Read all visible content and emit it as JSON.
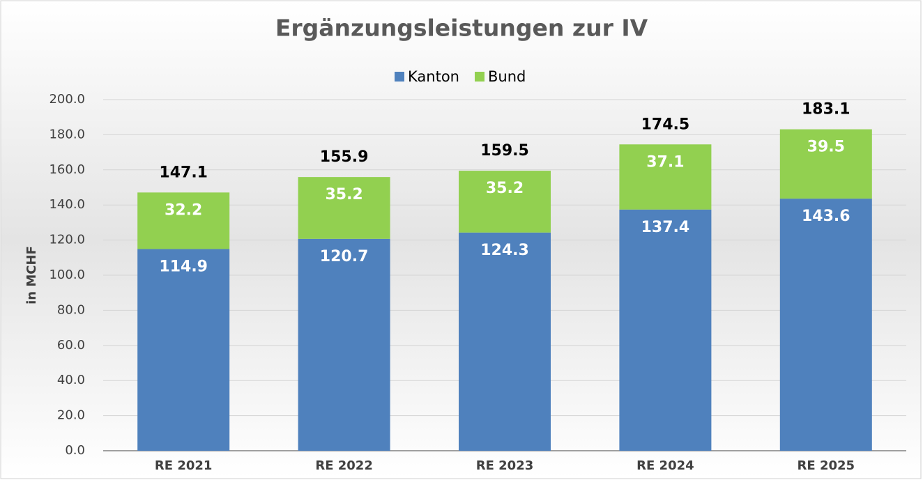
{
  "chart_data": {
    "type": "stacked_bar",
    "title": "Ergänzungsleistungen zur IV",
    "y_axis_label": "in MCHF",
    "categories": [
      "RE 2021",
      "RE 2022",
      "RE 2023",
      "RE 2024",
      "RE 2025"
    ],
    "series": [
      {
        "name": "Kanton",
        "color": "#4f81bd",
        "values": [
          114.9,
          120.7,
          124.3,
          137.4,
          143.6
        ]
      },
      {
        "name": "Bund",
        "color": "#92d050",
        "values": [
          32.2,
          35.2,
          35.2,
          37.1,
          39.5
        ]
      }
    ],
    "totals": [
      147.1,
      155.9,
      159.5,
      174.5,
      183.1
    ],
    "ylim": [
      0,
      200
    ],
    "yticks": [
      {
        "value": 0,
        "label": "0.0"
      },
      {
        "value": 20,
        "label": "20.0"
      },
      {
        "value": 40,
        "label": "40.0"
      },
      {
        "value": 60,
        "label": "60.0"
      },
      {
        "value": 80,
        "label": "80.0"
      },
      {
        "value": 100,
        "label": "100.0"
      },
      {
        "value": 120,
        "label": "120.0"
      },
      {
        "value": 140,
        "label": "140.0"
      },
      {
        "value": 160,
        "label": "160.0"
      },
      {
        "value": 180,
        "label": "180.0"
      },
      {
        "value": 200,
        "label": "200.0"
      }
    ],
    "grid": true,
    "legend": "top"
  }
}
